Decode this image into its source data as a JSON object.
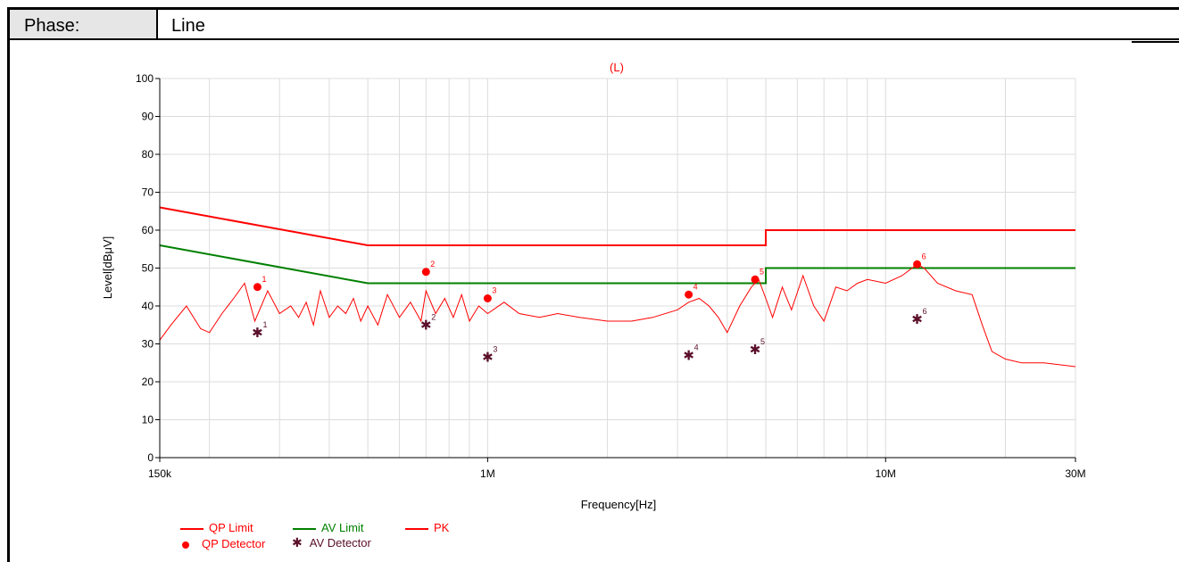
{
  "header": {
    "phase_label": "Phase:",
    "phase_value": "Line"
  },
  "chart_data": {
    "type": "line",
    "title": "(L)",
    "xlabel": "Frequency[Hz]",
    "ylabel": "Level[dBμV]",
    "x_scale": "log",
    "xlim": [
      150000,
      30000000
    ],
    "ylim": [
      0,
      100
    ],
    "grid": true,
    "x_ticks": [
      {
        "value": 150000,
        "label": "150k"
      },
      {
        "value": 1000000,
        "label": "1M"
      },
      {
        "value": 10000000,
        "label": "10M"
      },
      {
        "value": 30000000,
        "label": "30M"
      }
    ],
    "y_ticks": [
      0,
      10,
      20,
      30,
      40,
      50,
      60,
      70,
      80,
      90,
      100
    ],
    "colors": {
      "qp": "#ff0000",
      "av": "#008000",
      "pk": "#ff0000",
      "av_det": "#5a0f2a",
      "title": "#ff0000"
    },
    "series": [
      {
        "name": "QP Limit",
        "x": [
          150000,
          500000,
          500000,
          5000000,
          5000000,
          30000000
        ],
        "y": [
          66,
          56,
          56,
          56,
          60,
          60
        ]
      },
      {
        "name": "AV Limit",
        "x": [
          150000,
          500000,
          500000,
          5000000,
          5000000,
          30000000
        ],
        "y": [
          56,
          46,
          46,
          46,
          50,
          50
        ]
      },
      {
        "name": "PK",
        "x": [
          150000,
          160000,
          175000,
          190000,
          200000,
          215000,
          230000,
          245000,
          260000,
          280000,
          300000,
          320000,
          335000,
          350000,
          365000,
          380000,
          400000,
          420000,
          440000,
          460000,
          480000,
          500000,
          530000,
          560000,
          600000,
          640000,
          680000,
          700000,
          740000,
          780000,
          820000,
          860000,
          900000,
          950000,
          1000000,
          1100000,
          1200000,
          1350000,
          1500000,
          1700000,
          2000000,
          2300000,
          2600000,
          3000000,
          3200000,
          3400000,
          3600000,
          3800000,
          4000000,
          4300000,
          4600000,
          4800000,
          5000000,
          5200000,
          5500000,
          5800000,
          6200000,
          6600000,
          7000000,
          7500000,
          8000000,
          8500000,
          9000000,
          10000000,
          11000000,
          12000000,
          12500000,
          13500000,
          15000000,
          16500000,
          17500000,
          18500000,
          20000000,
          22000000,
          25000000,
          30000000
        ],
        "y": [
          31,
          35,
          40,
          34,
          33,
          38,
          42,
          46,
          36,
          44,
          38,
          40,
          37,
          41,
          35,
          44,
          37,
          40,
          38,
          42,
          36,
          40,
          35,
          43,
          37,
          41,
          36,
          44,
          38,
          42,
          37,
          43,
          36,
          40,
          38,
          41,
          38,
          37,
          38,
          37,
          36,
          36,
          37,
          39,
          41,
          42,
          40,
          37,
          33,
          40,
          45,
          47,
          42,
          37,
          45,
          39,
          48,
          40,
          36,
          45,
          44,
          46,
          47,
          46,
          48,
          51,
          50,
          46,
          44,
          43,
          35,
          28,
          26,
          25,
          25,
          24
        ]
      },
      {
        "name": "QP Detector",
        "x": [
          264000,
          700000,
          1000000,
          3200000,
          4700000,
          12000000
        ],
        "y": [
          45,
          49,
          42,
          43,
          47,
          51
        ],
        "labels": [
          "1",
          "2",
          "3",
          "4",
          "5",
          "6"
        ]
      },
      {
        "name": "AV Detector",
        "x": [
          264000,
          700000,
          1000000,
          3200000,
          4700000,
          12000000
        ],
        "y": [
          33,
          35,
          26.5,
          27,
          28.5,
          36.5
        ],
        "labels": [
          "1",
          "2",
          "3",
          "4",
          "5",
          "6"
        ]
      }
    ]
  }
}
